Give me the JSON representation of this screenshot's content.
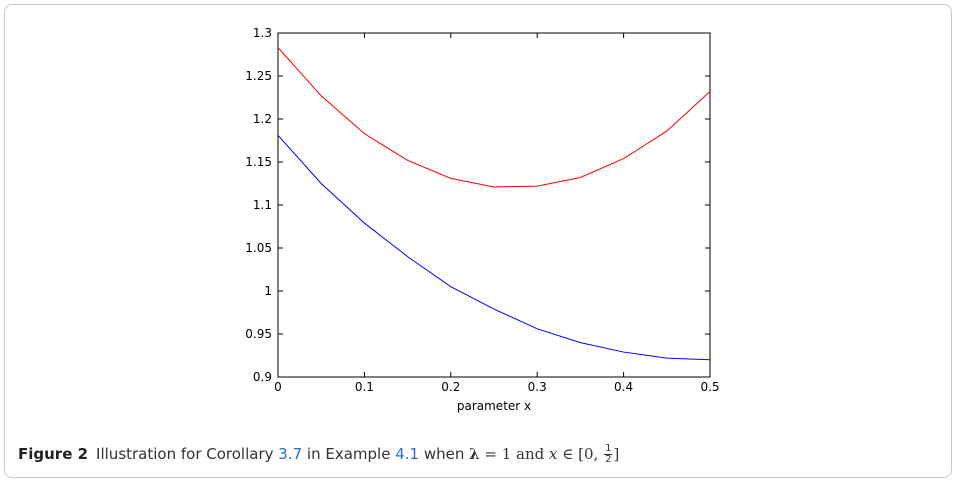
{
  "chart_data": {
    "type": "line",
    "title": "",
    "xlabel": "parameter x",
    "ylabel": "",
    "xlim": [
      0,
      0.5
    ],
    "ylim": [
      0.9,
      1.3
    ],
    "xticks": [
      "0",
      "0.1",
      "0.2",
      "0.3",
      "0.4",
      "0.5"
    ],
    "yticks": [
      "0.9",
      "0.95",
      "1",
      "1.05",
      "1.1",
      "1.15",
      "1.2",
      "1.25",
      "1.3"
    ],
    "grid": false,
    "x": [
      0,
      0.05,
      0.1,
      0.15,
      0.2,
      0.25,
      0.3,
      0.35,
      0.4,
      0.45,
      0.5
    ],
    "series": [
      {
        "color": "#ff0000",
        "values": [
          1.283,
          1.227,
          1.183,
          1.152,
          1.131,
          1.121,
          1.122,
          1.132,
          1.154,
          1.186,
          1.232
        ]
      },
      {
        "color": "#0000ff",
        "values": [
          1.181,
          1.125,
          1.079,
          1.04,
          1.005,
          0.979,
          0.956,
          0.94,
          0.929,
          0.922,
          0.92
        ]
      }
    ]
  },
  "caption": {
    "label": "Figure 2",
    "text_before_ref1": "Illustration for Corollary ",
    "ref1": "3.7",
    "text_between": " in Example ",
    "ref2": "4.1",
    "text_when": " when ",
    "lambda_symbol": "λ",
    "equals_one": " = 1 and ",
    "x_var": "x",
    "in_interval_open": " ∈ [0, ",
    "frac_num": "1",
    "frac_den": "2",
    "interval_close": "]"
  }
}
